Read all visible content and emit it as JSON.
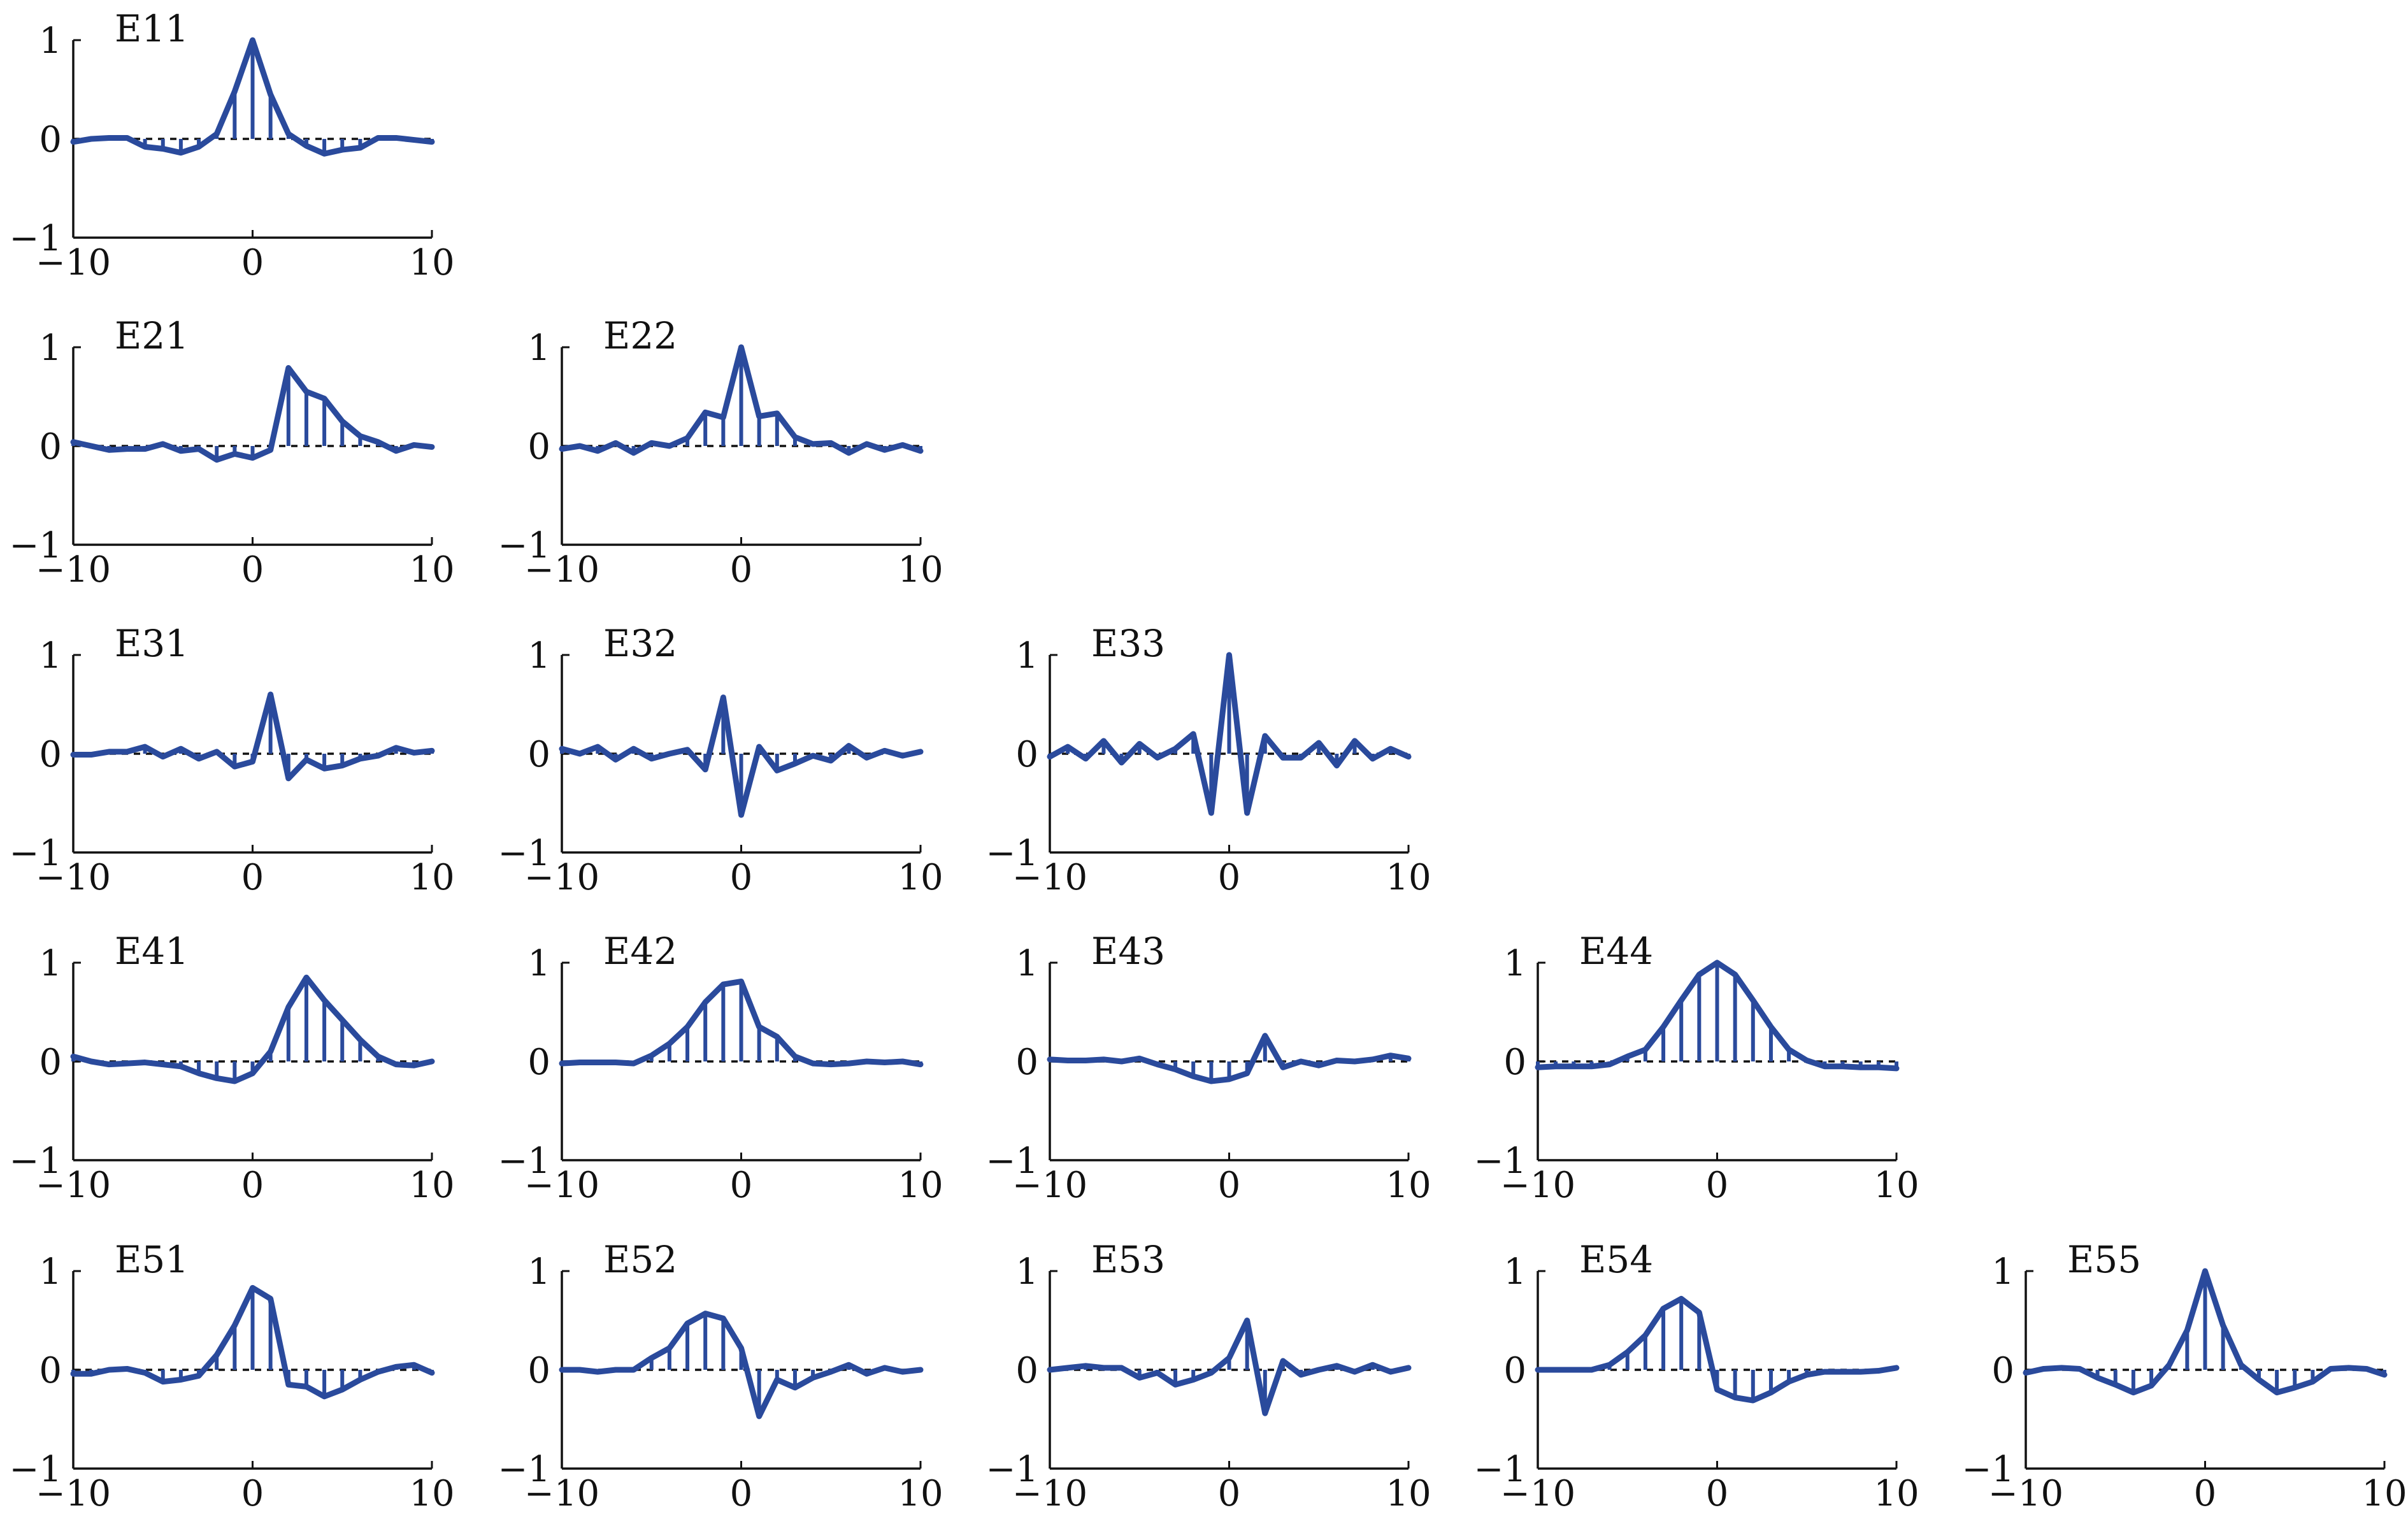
{
  "chart_data": {
    "type": "line",
    "layout": "lower-triangular grid, 5 rows x 5 columns",
    "series_color": "#2a4a9c",
    "xlim": [
      -10,
      10
    ],
    "ylim": [
      -1,
      1
    ],
    "xticks": [
      "−10",
      "0",
      "10"
    ],
    "yticks": [
      "1",
      "0",
      "−1"
    ],
    "x": [
      -10,
      -9,
      -8,
      -7,
      -6,
      -5,
      -4,
      -3,
      -2,
      -1,
      0,
      1,
      2,
      3,
      4,
      5,
      6,
      7,
      8,
      9,
      10
    ],
    "panels": [
      {
        "title": "E11",
        "row": 1,
        "col": 1,
        "values": [
          -0.03,
          0.0,
          0.01,
          0.01,
          -0.08,
          -0.1,
          -0.14,
          -0.08,
          0.05,
          0.48,
          1.0,
          0.45,
          0.05,
          -0.07,
          -0.15,
          -0.11,
          -0.09,
          0.01,
          0.01,
          -0.01,
          -0.03
        ]
      },
      {
        "title": "E21",
        "row": 2,
        "col": 1,
        "values": [
          0.04,
          0.0,
          -0.04,
          -0.03,
          -0.03,
          0.02,
          -0.05,
          -0.03,
          -0.14,
          -0.08,
          -0.12,
          -0.04,
          0.79,
          0.55,
          0.48,
          0.25,
          0.1,
          0.04,
          -0.05,
          0.01,
          -0.01
        ]
      },
      {
        "title": "E22",
        "row": 2,
        "col": 2,
        "values": [
          -0.03,
          0.0,
          -0.05,
          0.03,
          -0.07,
          0.03,
          0.0,
          0.08,
          0.34,
          0.29,
          1.0,
          0.3,
          0.33,
          0.09,
          0.02,
          0.03,
          -0.07,
          0.02,
          -0.04,
          0.01,
          -0.05
        ]
      },
      {
        "title": "E31",
        "row": 3,
        "col": 1,
        "values": [
          -0.01,
          -0.01,
          0.02,
          0.02,
          0.07,
          -0.03,
          0.05,
          -0.05,
          0.02,
          -0.13,
          -0.08,
          0.6,
          -0.25,
          -0.06,
          -0.15,
          -0.12,
          -0.05,
          -0.02,
          0.06,
          0.01,
          0.03
        ]
      },
      {
        "title": "E32",
        "row": 3,
        "col": 2,
        "values": [
          0.05,
          0.0,
          0.07,
          -0.06,
          0.05,
          -0.05,
          0.0,
          0.04,
          -0.16,
          0.57,
          -0.62,
          0.07,
          -0.17,
          -0.1,
          -0.02,
          -0.07,
          0.08,
          -0.04,
          0.03,
          -0.02,
          0.02
        ]
      },
      {
        "title": "E33",
        "row": 3,
        "col": 3,
        "values": [
          -0.03,
          0.07,
          -0.05,
          0.13,
          -0.09,
          0.1,
          -0.04,
          0.05,
          0.2,
          -0.6,
          1.0,
          -0.6,
          0.18,
          -0.04,
          -0.04,
          0.11,
          -0.12,
          0.13,
          -0.05,
          0.05,
          -0.03
        ]
      },
      {
        "title": "E41",
        "row": 4,
        "col": 1,
        "values": [
          0.05,
          0.0,
          -0.03,
          -0.02,
          -0.01,
          -0.03,
          -0.05,
          -0.12,
          -0.17,
          -0.2,
          -0.12,
          0.1,
          0.55,
          0.85,
          0.62,
          0.42,
          0.22,
          0.05,
          -0.03,
          -0.04,
          0.0
        ]
      },
      {
        "title": "E42",
        "row": 4,
        "col": 2,
        "values": [
          -0.02,
          -0.01,
          -0.01,
          -0.01,
          -0.02,
          0.06,
          0.18,
          0.35,
          0.6,
          0.78,
          0.81,
          0.35,
          0.25,
          0.05,
          -0.02,
          -0.03,
          -0.02,
          0.0,
          -0.01,
          0.0,
          -0.03
        ]
      },
      {
        "title": "E43",
        "row": 4,
        "col": 3,
        "values": [
          0.02,
          0.01,
          0.01,
          0.02,
          0.0,
          0.03,
          -0.03,
          -0.08,
          -0.15,
          -0.2,
          -0.18,
          -0.12,
          0.26,
          -0.06,
          0.0,
          -0.04,
          0.01,
          0.0,
          0.02,
          0.06,
          0.03
        ]
      },
      {
        "title": "E44",
        "row": 4,
        "col": 4,
        "values": [
          -0.06,
          -0.05,
          -0.05,
          -0.05,
          -0.03,
          0.05,
          0.12,
          0.35,
          0.62,
          0.88,
          1.0,
          0.88,
          0.62,
          0.35,
          0.12,
          0.01,
          -0.05,
          -0.05,
          -0.06,
          -0.06,
          -0.07
        ]
      },
      {
        "title": "E51",
        "row": 5,
        "col": 1,
        "values": [
          -0.04,
          -0.04,
          0.0,
          0.01,
          -0.03,
          -0.12,
          -0.1,
          -0.06,
          0.15,
          0.45,
          0.83,
          0.72,
          -0.15,
          -0.17,
          -0.27,
          -0.2,
          -0.1,
          -0.02,
          0.03,
          0.05,
          -0.03
        ]
      },
      {
        "title": "E52",
        "row": 5,
        "col": 2,
        "values": [
          0.0,
          0.0,
          -0.02,
          0.0,
          0.0,
          0.12,
          0.22,
          0.47,
          0.57,
          0.52,
          0.22,
          -0.47,
          -0.1,
          -0.18,
          -0.08,
          -0.02,
          0.05,
          -0.04,
          0.02,
          -0.02,
          0.0
        ]
      },
      {
        "title": "E53",
        "row": 5,
        "col": 3,
        "values": [
          0.0,
          0.02,
          0.04,
          0.02,
          0.02,
          -0.08,
          -0.03,
          -0.15,
          -0.1,
          -0.03,
          0.12,
          0.5,
          -0.44,
          0.09,
          -0.05,
          0.0,
          0.04,
          -0.02,
          0.05,
          -0.02,
          0.02
        ]
      },
      {
        "title": "E54",
        "row": 5,
        "col": 4,
        "values": [
          0.0,
          0.0,
          0.0,
          0.0,
          0.05,
          0.18,
          0.35,
          0.62,
          0.72,
          0.58,
          -0.2,
          -0.28,
          -0.31,
          -0.23,
          -0.12,
          -0.05,
          -0.02,
          -0.02,
          -0.02,
          -0.01,
          0.02
        ]
      },
      {
        "title": "E55",
        "row": 5,
        "col": 5,
        "values": [
          -0.03,
          0.01,
          0.02,
          0.01,
          -0.08,
          -0.15,
          -0.23,
          -0.16,
          0.05,
          0.4,
          1.0,
          0.45,
          0.05,
          -0.1,
          -0.23,
          -0.18,
          -0.12,
          0.01,
          0.02,
          0.01,
          -0.05
        ]
      }
    ]
  }
}
